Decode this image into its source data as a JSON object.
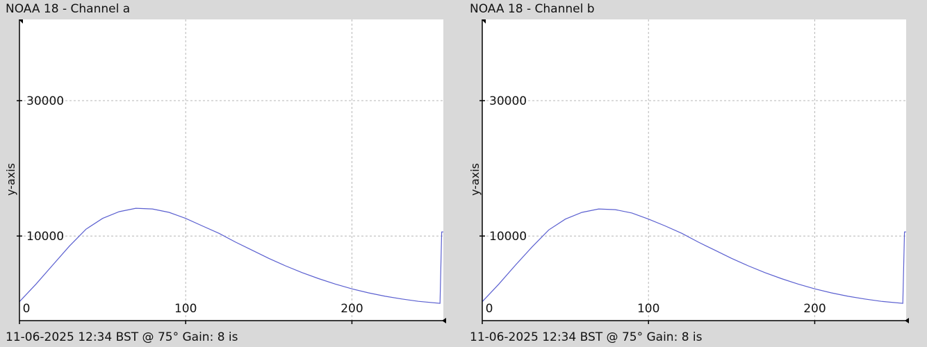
{
  "colors": {
    "background": "#d9d9d9",
    "plot_bg": "#ffffff",
    "series": "#5a5fd0",
    "grid": "#b5b5b5",
    "axis": "#000000"
  },
  "panels": [
    {
      "title": "NOAA 18 - Channel a",
      "ylabel": "y-axis",
      "footer": "11-06-2025 12:34 BST @ 75° Gain: 8 is"
    },
    {
      "title": "NOAA 18 - Channel b",
      "ylabel": "y-axis",
      "footer": "11-06-2025 12:34 BST @ 75° Gain: 8 is"
    }
  ],
  "chart_data": [
    {
      "type": "line",
      "title": "NOAA 18 - Channel a",
      "xlabel": "",
      "ylabel": "y-axis",
      "xlim": [
        0,
        255
      ],
      "ylim": [
        -2500,
        42000
      ],
      "x_ticks": [
        0,
        100,
        200
      ],
      "y_ticks": [
        10000,
        30000
      ],
      "grid": true,
      "series": [
        {
          "x": [
            0,
            10,
            20,
            30,
            40,
            50,
            60,
            70,
            80,
            90,
            100,
            110,
            120,
            130,
            140,
            150,
            160,
            170,
            180,
            190,
            200,
            210,
            220,
            230,
            240,
            253,
            254,
            255
          ],
          "y": [
            300,
            2900,
            5700,
            8500,
            11000,
            12600,
            13600,
            14100,
            14000,
            13500,
            12600,
            11500,
            10400,
            9100,
            7900,
            6700,
            5600,
            4600,
            3700,
            2900,
            2200,
            1600,
            1100,
            700,
            350,
            50,
            10600,
            10600
          ]
        }
      ]
    },
    {
      "type": "line",
      "title": "NOAA 18 - Channel b",
      "xlabel": "",
      "ylabel": "y-axis",
      "xlim": [
        0,
        255
      ],
      "ylim": [
        -2500,
        42000
      ],
      "x_ticks": [
        0,
        100,
        200
      ],
      "y_ticks": [
        10000,
        30000
      ],
      "grid": true,
      "series": [
        {
          "x": [
            0,
            10,
            20,
            30,
            40,
            50,
            60,
            70,
            80,
            90,
            100,
            110,
            120,
            130,
            140,
            150,
            160,
            170,
            180,
            190,
            200,
            210,
            220,
            230,
            240,
            253,
            254,
            255
          ],
          "y": [
            300,
            2900,
            5700,
            8400,
            10900,
            12500,
            13500,
            14000,
            13900,
            13400,
            12500,
            11500,
            10400,
            9100,
            7900,
            6700,
            5600,
            4600,
            3700,
            2900,
            2200,
            1600,
            1100,
            700,
            350,
            50,
            10600,
            10600
          ]
        }
      ]
    }
  ]
}
